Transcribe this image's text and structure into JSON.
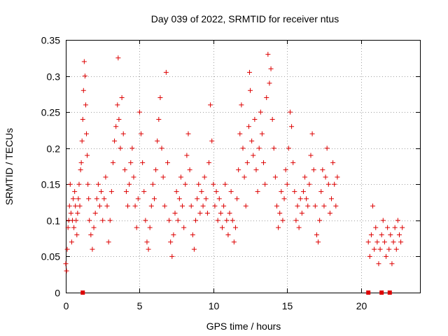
{
  "chart_data": {
    "type": "scatter",
    "title": "Day 039 of 2022, SRMTID for receiver ntus",
    "xlabel": "GPS time / hours",
    "ylabel": "SRMTID / TECUs",
    "xlim": [
      0,
      24
    ],
    "ylim": [
      0,
      0.35
    ],
    "xticks": [
      0,
      5,
      10,
      15,
      20
    ],
    "xtick_labels": [
      "0",
      "5",
      "10",
      "15",
      "20"
    ],
    "yticks": [
      0,
      0.05,
      0.1,
      0.15,
      0.2,
      0.25,
      0.3,
      0.35
    ],
    "ytick_labels": [
      "0",
      "0.05",
      "0.1",
      "0.15",
      "0.2",
      "0.25",
      "0.3",
      "0.35"
    ],
    "grid": true,
    "marker": "plus",
    "color": "#dd0000",
    "series": [
      {
        "name": "SRMTID",
        "points": [
          [
            0.0,
            0.04
          ],
          [
            0.05,
            0.03
          ],
          [
            0.1,
            0.06
          ],
          [
            0.15,
            0.09
          ],
          [
            0.2,
            0.1
          ],
          [
            0.25,
            0.12
          ],
          [
            0.3,
            0.15
          ],
          [
            0.35,
            0.11
          ],
          [
            0.4,
            0.07
          ],
          [
            0.45,
            0.1
          ],
          [
            0.5,
            0.13
          ],
          [
            0.55,
            0.09
          ],
          [
            0.6,
            0.14
          ],
          [
            0.65,
            0.12
          ],
          [
            0.7,
            0.1
          ],
          [
            0.75,
            0.08
          ],
          [
            0.8,
            0.11
          ],
          [
            0.85,
            0.13
          ],
          [
            0.9,
            0.15
          ],
          [
            0.95,
            0.12
          ],
          [
            1.0,
            0.17
          ],
          [
            1.05,
            0.18
          ],
          [
            1.1,
            0.21
          ],
          [
            1.15,
            0.24
          ],
          [
            1.2,
            0.28
          ],
          [
            1.25,
            0.32
          ],
          [
            1.3,
            0.3
          ],
          [
            1.35,
            0.26
          ],
          [
            1.4,
            0.22
          ],
          [
            1.45,
            0.19
          ],
          [
            1.5,
            0.15
          ],
          [
            1.55,
            0.13
          ],
          [
            1.6,
            0.1
          ],
          [
            1.7,
            0.08
          ],
          [
            1.8,
            0.06
          ],
          [
            1.9,
            0.09
          ],
          [
            2.0,
            0.11
          ],
          [
            2.1,
            0.13
          ],
          [
            2.2,
            0.15
          ],
          [
            2.3,
            0.12
          ],
          [
            2.4,
            0.14
          ],
          [
            2.5,
            0.1
          ],
          [
            2.6,
            0.13
          ],
          [
            2.7,
            0.16
          ],
          [
            2.8,
            0.12
          ],
          [
            2.9,
            0.07
          ],
          [
            3.0,
            0.1
          ],
          [
            3.1,
            0.14
          ],
          [
            3.2,
            0.18
          ],
          [
            3.3,
            0.21
          ],
          [
            3.4,
            0.23
          ],
          [
            3.5,
            0.26
          ],
          [
            3.55,
            0.325
          ],
          [
            3.6,
            0.24
          ],
          [
            3.7,
            0.2
          ],
          [
            3.8,
            0.27
          ],
          [
            3.9,
            0.22
          ],
          [
            4.0,
            0.17
          ],
          [
            4.1,
            0.14
          ],
          [
            4.2,
            0.12
          ],
          [
            4.3,
            0.15
          ],
          [
            4.4,
            0.18
          ],
          [
            4.5,
            0.2
          ],
          [
            4.6,
            0.16
          ],
          [
            4.7,
            0.12
          ],
          [
            4.8,
            0.09
          ],
          [
            4.9,
            0.13
          ],
          [
            5.0,
            0.25
          ],
          [
            5.1,
            0.22
          ],
          [
            5.2,
            0.18
          ],
          [
            5.3,
            0.14
          ],
          [
            5.4,
            0.1
          ],
          [
            5.5,
            0.07
          ],
          [
            5.6,
            0.06
          ],
          [
            5.7,
            0.09
          ],
          [
            5.8,
            0.12
          ],
          [
            5.9,
            0.15
          ],
          [
            6.0,
            0.13
          ],
          [
            6.1,
            0.17
          ],
          [
            6.2,
            0.21
          ],
          [
            6.3,
            0.24
          ],
          [
            6.4,
            0.27
          ],
          [
            6.5,
            0.2
          ],
          [
            6.6,
            0.16
          ],
          [
            6.7,
            0.12
          ],
          [
            6.8,
            0.305
          ],
          [
            6.9,
            0.18
          ],
          [
            7.0,
            0.1
          ],
          [
            7.1,
            0.07
          ],
          [
            7.2,
            0.05
          ],
          [
            7.3,
            0.08
          ],
          [
            7.4,
            0.11
          ],
          [
            7.5,
            0.14
          ],
          [
            7.6,
            0.1
          ],
          [
            7.7,
            0.13
          ],
          [
            7.8,
            0.16
          ],
          [
            7.9,
            0.12
          ],
          [
            8.0,
            0.09
          ],
          [
            8.1,
            0.15
          ],
          [
            8.2,
            0.19
          ],
          [
            8.3,
            0.22
          ],
          [
            8.4,
            0.17
          ],
          [
            8.5,
            0.12
          ],
          [
            8.6,
            0.08
          ],
          [
            8.7,
            0.06
          ],
          [
            8.8,
            0.1
          ],
          [
            8.9,
            0.13
          ],
          [
            9.0,
            0.15
          ],
          [
            9.1,
            0.11
          ],
          [
            9.2,
            0.14
          ],
          [
            9.3,
            0.12
          ],
          [
            9.4,
            0.16
          ],
          [
            9.5,
            0.13
          ],
          [
            9.6,
            0.11
          ],
          [
            9.7,
            0.18
          ],
          [
            9.8,
            0.26
          ],
          [
            9.9,
            0.21
          ],
          [
            10.0,
            0.15
          ],
          [
            10.1,
            0.12
          ],
          [
            10.2,
            0.14
          ],
          [
            10.3,
            0.1
          ],
          [
            10.4,
            0.13
          ],
          [
            10.5,
            0.11
          ],
          [
            10.6,
            0.09
          ],
          [
            10.7,
            0.12
          ],
          [
            10.8,
            0.15
          ],
          [
            10.9,
            0.1
          ],
          [
            11.0,
            0.08
          ],
          [
            11.1,
            0.11
          ],
          [
            11.2,
            0.14
          ],
          [
            11.3,
            0.1
          ],
          [
            11.4,
            0.07
          ],
          [
            11.5,
            0.09
          ],
          [
            11.6,
            0.13
          ],
          [
            11.7,
            0.17
          ],
          [
            11.8,
            0.22
          ],
          [
            11.9,
            0.26
          ],
          [
            12.0,
            0.2
          ],
          [
            12.1,
            0.16
          ],
          [
            12.2,
            0.12
          ],
          [
            12.3,
            0.18
          ],
          [
            12.4,
            0.23
          ],
          [
            12.45,
            0.305
          ],
          [
            12.5,
            0.28
          ],
          [
            12.6,
            0.21
          ],
          [
            12.7,
            0.19
          ],
          [
            12.8,
            0.24
          ],
          [
            12.9,
            0.17
          ],
          [
            13.0,
            0.14
          ],
          [
            13.1,
            0.2
          ],
          [
            13.2,
            0.25
          ],
          [
            13.3,
            0.22
          ],
          [
            13.4,
            0.18
          ],
          [
            13.5,
            0.15
          ],
          [
            13.6,
            0.27
          ],
          [
            13.7,
            0.33
          ],
          [
            13.8,
            0.29
          ],
          [
            13.9,
            0.31
          ],
          [
            14.0,
            0.24
          ],
          [
            14.1,
            0.2
          ],
          [
            14.2,
            0.16
          ],
          [
            14.3,
            0.12
          ],
          [
            14.4,
            0.09
          ],
          [
            14.5,
            0.11
          ],
          [
            14.6,
            0.14
          ],
          [
            14.7,
            0.1
          ],
          [
            14.8,
            0.13
          ],
          [
            14.9,
            0.17
          ],
          [
            15.0,
            0.15
          ],
          [
            15.1,
            0.2
          ],
          [
            15.2,
            0.25
          ],
          [
            15.3,
            0.23
          ],
          [
            15.4,
            0.18
          ],
          [
            15.5,
            0.14
          ],
          [
            15.6,
            0.1
          ],
          [
            15.7,
            0.12
          ],
          [
            15.8,
            0.09
          ],
          [
            15.9,
            0.13
          ],
          [
            16.0,
            0.11
          ],
          [
            16.1,
            0.14
          ],
          [
            16.2,
            0.16
          ],
          [
            16.3,
            0.13
          ],
          [
            16.4,
            0.12
          ],
          [
            16.5,
            0.15
          ],
          [
            16.6,
            0.19
          ],
          [
            16.7,
            0.22
          ],
          [
            16.8,
            0.17
          ],
          [
            16.9,
            0.12
          ],
          [
            17.0,
            0.08
          ],
          [
            17.1,
            0.07
          ],
          [
            17.2,
            0.1
          ],
          [
            17.3,
            0.14
          ],
          [
            17.4,
            0.17
          ],
          [
            17.5,
            0.12
          ],
          [
            17.6,
            0.16
          ],
          [
            17.7,
            0.2
          ],
          [
            17.8,
            0.15
          ],
          [
            17.9,
            0.11
          ],
          [
            18.0,
            0.13
          ],
          [
            18.1,
            0.18
          ],
          [
            18.2,
            0.15
          ],
          [
            18.3,
            0.12
          ],
          [
            18.4,
            0.16
          ],
          [
            20.5,
            0.07
          ],
          [
            20.6,
            0.05
          ],
          [
            20.7,
            0.08
          ],
          [
            20.8,
            0.12
          ],
          [
            20.9,
            0.06
          ],
          [
            21.0,
            0.09
          ],
          [
            21.1,
            0.07
          ],
          [
            21.2,
            0.04
          ],
          [
            21.3,
            0.06
          ],
          [
            21.4,
            0.08
          ],
          [
            21.5,
            0.1
          ],
          [
            21.6,
            0.07
          ],
          [
            21.7,
            0.05
          ],
          [
            21.8,
            0.09
          ],
          [
            21.9,
            0.06
          ],
          [
            22.0,
            0.08
          ],
          [
            22.1,
            0.04
          ],
          [
            22.2,
            0.07
          ],
          [
            22.3,
            0.09
          ],
          [
            22.4,
            0.06
          ],
          [
            22.5,
            0.1
          ],
          [
            22.6,
            0.08
          ],
          [
            22.7,
            0.07
          ],
          [
            22.8,
            0.09
          ]
        ]
      }
    ],
    "baseline_markers": [
      1.15,
      20.5,
      21.4,
      21.95
    ]
  }
}
